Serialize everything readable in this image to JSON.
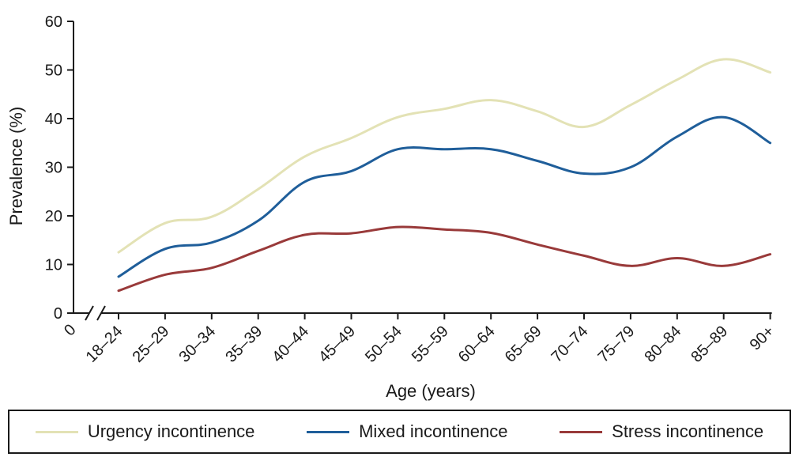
{
  "chart_data": {
    "type": "line",
    "title": "",
    "xlabel": "Age (years)",
    "ylabel": "Prevalence (%)",
    "x_origin_label": "0",
    "categories": [
      "18–24",
      "25–29",
      "30–34",
      "35–39",
      "40–44",
      "45–49",
      "50–54",
      "55–59",
      "60–64",
      "65–69",
      "70–74",
      "75–79",
      "80–84",
      "85–89",
      "90+"
    ],
    "yticks": [
      0,
      10,
      20,
      30,
      40,
      50,
      60
    ],
    "ylim": [
      0,
      60
    ],
    "grid": false,
    "legend_position": "bottom",
    "series": [
      {
        "name": "Urgency incontinence",
        "color": "#e3e2b5",
        "values": [
          12.5,
          18.5,
          19.8,
          25.5,
          32.2,
          36.0,
          40.3,
          42.0,
          43.8,
          41.5,
          38.3,
          42.8,
          48.0,
          52.2,
          49.5
        ]
      },
      {
        "name": "Mixed incontinence",
        "color": "#1f5e9a",
        "values": [
          7.5,
          13.2,
          14.5,
          19.0,
          27.0,
          29.2,
          33.7,
          33.7,
          33.7,
          31.3,
          28.7,
          30.0,
          36.3,
          40.3,
          35.0
        ]
      },
      {
        "name": "Stress incontinence",
        "color": "#993a3a",
        "values": [
          4.6,
          7.9,
          9.3,
          12.8,
          16.1,
          16.4,
          17.7,
          17.2,
          16.5,
          14.1,
          11.8,
          9.7,
          11.3,
          9.7,
          12.1
        ]
      }
    ]
  }
}
